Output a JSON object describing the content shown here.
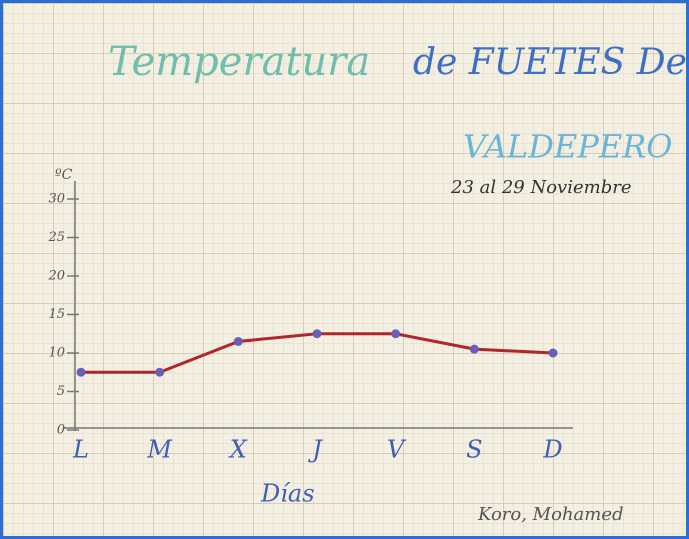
{
  "chart_data": {
    "type": "line",
    "title": [
      "Temperatura",
      "de FUETES De",
      "VALDEPERO"
    ],
    "subtitle": "23 al 29 Noviembre",
    "y_label": "ºC",
    "x_label": "Días",
    "author": "Koro, Mohamed",
    "categories": [
      "L",
      "M",
      "X",
      "J",
      "V",
      "S",
      "D"
    ],
    "series": [
      {
        "color": "#b0262a",
        "values": [
          7.5,
          7.5,
          11.5,
          12.5,
          12.5,
          10.5,
          10
        ]
      }
    ],
    "marker_color": "#6a5fb8",
    "ylim": [
      0,
      30
    ],
    "yticks": [
      0,
      5,
      10,
      15,
      20,
      25,
      30
    ]
  }
}
